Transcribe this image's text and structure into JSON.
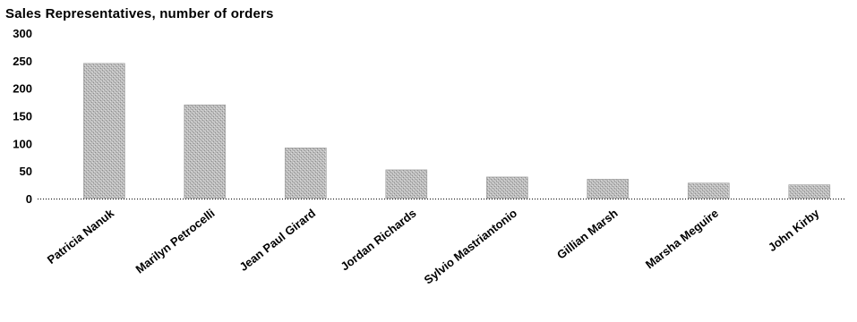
{
  "chart_data": {
    "type": "bar",
    "title": "Sales Representatives, number of orders",
    "xlabel": "",
    "ylabel": "",
    "categories": [
      "Patricia Nanuk",
      "Marilyn Petrocelli",
      "Jean Paul Girard",
      "Jordan Richards",
      "Sylvio Mastriantonio",
      "Gillian Marsh",
      "Marsha Meguire",
      "John Kirby"
    ],
    "values": [
      245,
      170,
      92,
      52,
      39,
      35,
      28,
      25
    ],
    "ylim": [
      0,
      300
    ],
    "yticks": [
      "0",
      "50",
      "100",
      "150",
      "200",
      "250",
      "300"
    ],
    "grid": false,
    "legend": "none",
    "colors": {
      "bar": "#b4b4b4",
      "axis": "#000000"
    }
  }
}
